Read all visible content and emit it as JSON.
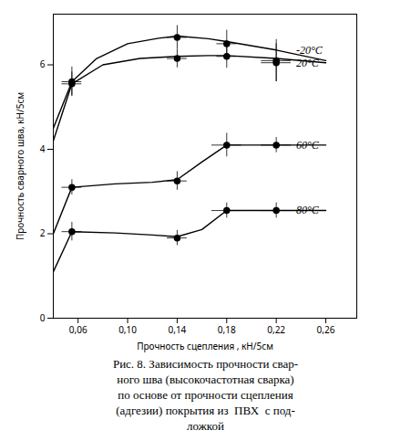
{
  "chart_data": {
    "type": "line",
    "xlabel": "Прочность сцепления , кН/5см",
    "ylabel": "Прочность сварного шва, кН/5см",
    "xlim": [
      0.04,
      0.285
    ],
    "ylim": [
      0,
      7.2
    ],
    "xticks": [
      {
        "value": 0.06,
        "label": "0,06"
      },
      {
        "value": 0.1,
        "label": "0,10"
      },
      {
        "value": 0.14,
        "label": "0,14"
      },
      {
        "value": 0.18,
        "label": "0,18"
      },
      {
        "value": 0.22,
        "label": "0,22"
      },
      {
        "value": 0.26,
        "label": "0,26"
      }
    ],
    "yticks": [
      0,
      2,
      4,
      6
    ],
    "grid": false,
    "color": "#000000",
    "marker": "circle",
    "series": [
      {
        "x": [
          0.055,
          0.14,
          0.18,
          0.22
        ],
        "values": [
          5.6,
          6.65,
          6.5,
          6.1
        ],
        "xerr": [
          0.008,
          0.008,
          0.008,
          0.012
        ],
        "yerr": [
          0.35,
          0.28,
          0.32,
          0.5
        ],
        "curve_x": [
          0.04,
          0.055,
          0.075,
          0.1,
          0.125,
          0.14,
          0.165,
          0.18,
          0.22,
          0.26
        ],
        "curve_y": [
          4.5,
          5.6,
          6.15,
          6.5,
          6.63,
          6.68,
          6.62,
          6.55,
          6.35,
          6.1
        ]
      },
      {
        "x": [
          0.055,
          0.14,
          0.18,
          0.22
        ],
        "values": [
          5.55,
          6.15,
          6.2,
          6.05
        ],
        "xerr": [
          0.008,
          0.008,
          0.008,
          0.012
        ],
        "yerr": [
          0.28,
          0.22,
          0.28,
          0.45
        ],
        "curve_x": [
          0.04,
          0.055,
          0.08,
          0.11,
          0.14,
          0.165,
          0.18,
          0.22,
          0.26
        ],
        "curve_y": [
          4.2,
          5.55,
          6.0,
          6.15,
          6.2,
          6.22,
          6.22,
          6.15,
          6.05
        ]
      },
      {
        "x": [
          0.055,
          0.14,
          0.18,
          0.22
        ],
        "values": [
          3.1,
          3.25,
          4.1,
          4.1
        ],
        "xerr": [
          0.008,
          0.008,
          0.012,
          0.012
        ],
        "yerr": [
          0.18,
          0.22,
          0.28,
          0.18
        ],
        "curve_x": [
          0.04,
          0.055,
          0.09,
          0.12,
          0.14,
          0.16,
          0.18,
          0.22,
          0.26
        ],
        "curve_y": [
          2.0,
          3.1,
          3.18,
          3.22,
          3.28,
          3.7,
          4.1,
          4.1,
          4.1
        ]
      },
      {
        "x": [
          0.055,
          0.14,
          0.18,
          0.22
        ],
        "values": [
          2.05,
          1.9,
          2.55,
          2.55
        ],
        "xerr": [
          0.008,
          0.008,
          0.012,
          0.012
        ],
        "yerr": [
          0.22,
          0.18,
          0.18,
          0.18
        ],
        "curve_x": [
          0.04,
          0.055,
          0.09,
          0.12,
          0.14,
          0.16,
          0.18,
          0.22,
          0.26
        ],
        "curve_y": [
          1.1,
          2.05,
          2.02,
          1.97,
          1.93,
          2.1,
          2.55,
          2.55,
          2.55
        ]
      }
    ],
    "annotations": [
      {
        "text": "-20°C",
        "x": 0.236,
        "y": 6.35
      },
      {
        "text": "20°C",
        "x": 0.236,
        "y": 6.05
      },
      {
        "text": "60°C",
        "x": 0.236,
        "y": 4.1
      },
      {
        "text": "80°C",
        "x": 0.236,
        "y": 2.55
      }
    ],
    "caption": [
      "Рис. 8. Зависимость прочности свар-",
      "ного шва (высокочастотная сварка)",
      "по основе от прочности сцепления",
      "(адгезии) покрытия из  ПВХ  с под-",
      "ложкой"
    ]
  }
}
